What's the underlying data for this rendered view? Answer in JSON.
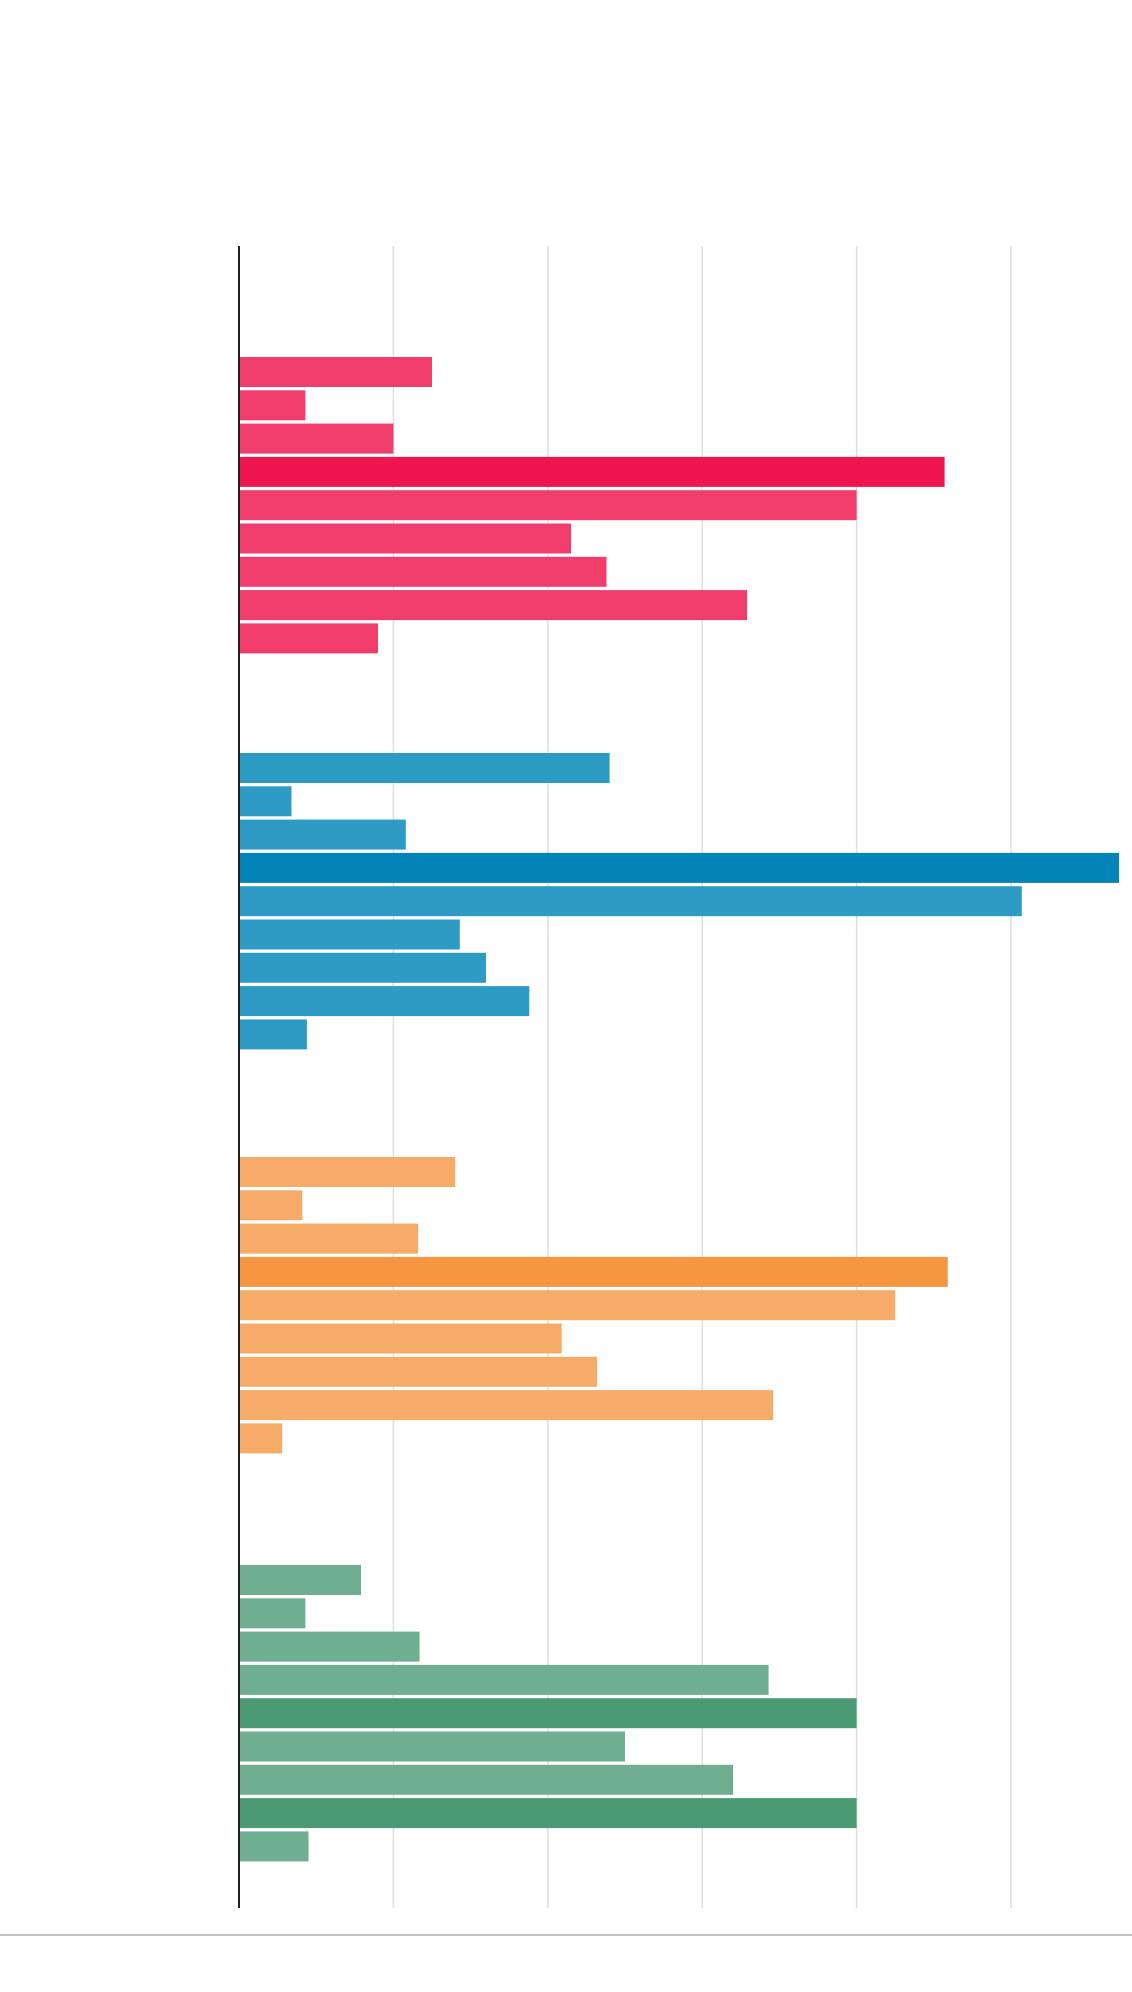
{
  "chart_data": {
    "type": "bar",
    "orientation": "horizontal",
    "title": "",
    "xlabel": "",
    "ylabel": "",
    "xlim": [
      0,
      5.7
    ],
    "grid": true,
    "legend": "none",
    "groups": [
      {
        "color": "#f03d6c",
        "highlight_color": "#f0154f",
        "highlight_indices": [
          3
        ],
        "values": [
          1.25,
          0.43,
          1.0,
          4.57,
          4.0,
          2.15,
          2.38,
          3.29,
          0.9
        ]
      },
      {
        "color": "#2e9bc4",
        "highlight_color": "#0384b8",
        "highlight_indices": [
          3
        ],
        "values": [
          2.4,
          0.34,
          1.08,
          5.7,
          5.07,
          1.43,
          1.6,
          1.88,
          0.44
        ]
      },
      {
        "color": "#f7ab69",
        "highlight_color": "#f79641",
        "highlight_indices": [
          3
        ],
        "values": [
          1.4,
          0.41,
          1.16,
          4.59,
          4.25,
          2.09,
          2.32,
          3.46,
          0.28
        ]
      },
      {
        "color": "#6fae91",
        "highlight_color": "#4b9a74",
        "highlight_indices": [
          4,
          7
        ],
        "values": [
          0.79,
          0.43,
          1.17,
          3.43,
          4.0,
          2.5,
          3.2,
          4.0,
          0.45
        ]
      }
    ]
  }
}
